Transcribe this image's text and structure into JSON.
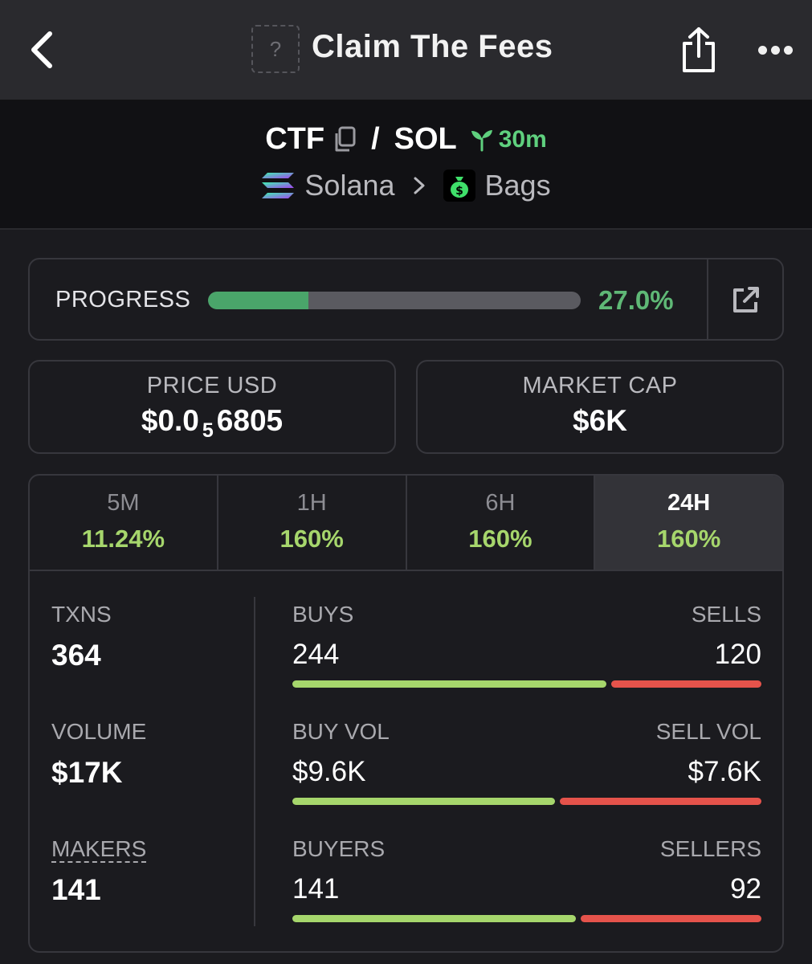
{
  "topbar": {
    "title": "Claim The Fees",
    "thumb_placeholder": "?"
  },
  "pair": {
    "base": "CTF",
    "separator": "/",
    "quote": "SOL",
    "age": "30m",
    "chain": "Solana",
    "dex": "Bags"
  },
  "progress": {
    "label": "PROGRESS",
    "value_text": "27.0%",
    "fraction": 0.27
  },
  "price": {
    "label": "PRICE USD",
    "prefix": "$0.0",
    "zeros_count": "5",
    "digits": "6805"
  },
  "market_cap": {
    "label": "MARKET CAP",
    "value": "$6K"
  },
  "tabs": [
    {
      "label": "5M",
      "change": "11.24%"
    },
    {
      "label": "1H",
      "change": "160%"
    },
    {
      "label": "6H",
      "change": "160%"
    },
    {
      "label": "24H",
      "change": "160%"
    }
  ],
  "metrics": {
    "txns": {
      "label": "TXNS",
      "value": "364"
    },
    "volume": {
      "label": "VOLUME",
      "value": "$17K"
    },
    "makers": {
      "label": "MAKERS",
      "value": "141"
    },
    "buys_sells": {
      "left_label": "BUYS",
      "right_label": "SELLS",
      "left_value": "244",
      "right_value": "120",
      "buy_share": 0.67
    },
    "vol_split": {
      "left_label": "BUY VOL",
      "right_label": "SELL VOL",
      "left_value": "$9.6K",
      "right_value": "$7.6K",
      "buy_share": 0.56
    },
    "buyers_sellers": {
      "left_label": "BUYERS",
      "right_label": "SELLERS",
      "left_value": "141",
      "right_value": "92",
      "buy_share": 0.605
    }
  },
  "colors": {
    "buy": "#a6d66c",
    "sell": "#e5534b",
    "progress": "#4aa56a",
    "age": "#5fd07e"
  }
}
